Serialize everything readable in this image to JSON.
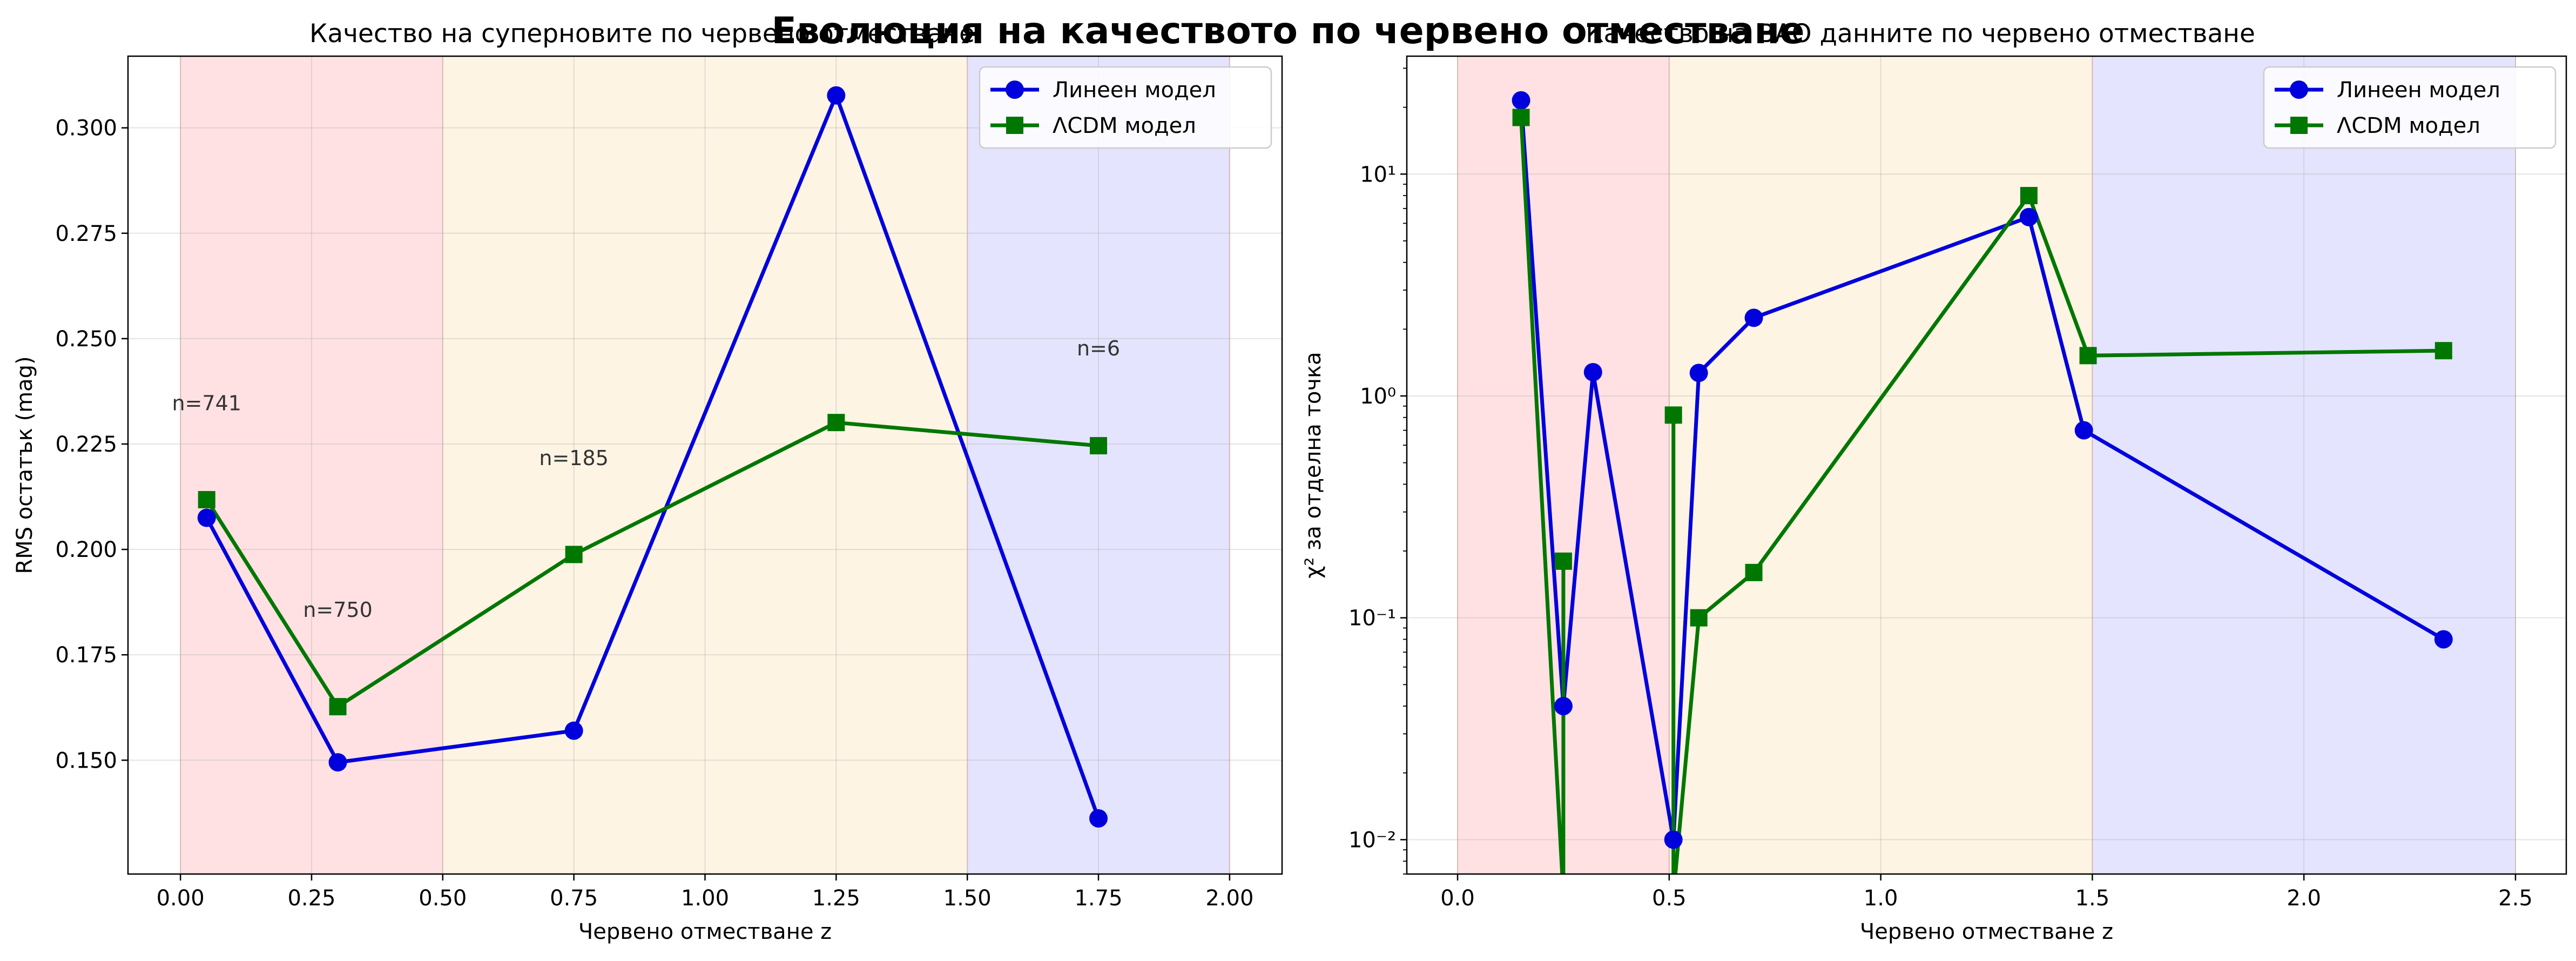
{
  "suptitle": "Еволюция на качеството по червено отместване",
  "chart_data": [
    {
      "type": "line",
      "title": "Качество на суперновите по червено отместване",
      "xlabel": "Червено отместване z",
      "ylabel": "RMS остатък (mag)",
      "xlim": [
        -0.1,
        2.1
      ],
      "ylim": [
        0.123,
        0.317
      ],
      "xticks": [
        "0.00",
        "0.25",
        "0.50",
        "0.75",
        "1.00",
        "1.25",
        "1.50",
        "1.75",
        "2.00"
      ],
      "yticks": [
        "0.150",
        "0.175",
        "0.200",
        "0.225",
        "0.250",
        "0.275",
        "0.300"
      ],
      "yscale": "linear",
      "grid": true,
      "legend": "top-right",
      "bands": [
        {
          "from": 0.0,
          "to": 0.5,
          "color": "#ffe1e3"
        },
        {
          "from": 0.5,
          "to": 1.5,
          "color": "#fdf4e3"
        },
        {
          "from": 1.5,
          "to": 2.0,
          "color": "#e4e4fe"
        }
      ],
      "series": [
        {
          "name": "Линеен модел",
          "color": "#0000dd",
          "marker": "circle",
          "x": [
            0.05,
            0.3,
            0.75,
            1.25,
            1.75
          ],
          "y": [
            0.2075,
            0.1495,
            0.157,
            0.3077,
            0.1362
          ]
        },
        {
          "name": "ΛCDM модел",
          "color": "#007700",
          "marker": "square",
          "x": [
            0.05,
            0.3,
            0.75,
            1.25,
            1.75
          ],
          "y": [
            0.2118,
            0.1627,
            0.1988,
            0.2301,
            0.2246
          ]
        }
      ],
      "annotations": [
        {
          "text": "n=741",
          "x": 0.05,
          "y": 0.233
        },
        {
          "text": "n=750",
          "x": 0.3,
          "y": 0.184
        },
        {
          "text": "n=185",
          "x": 0.75,
          "y": 0.22
        },
        {
          "text": "n=6",
          "x": 1.75,
          "y": 0.246
        }
      ]
    },
    {
      "type": "line",
      "title": "Качество на BAO данните по червено отместване",
      "xlabel": "Червено отместване z",
      "ylabel": "χ² за отделна точка",
      "xlim": [
        -0.12,
        2.62
      ],
      "ylim": [
        0.007,
        34
      ],
      "yscale": "log",
      "xticks": [
        "0.0",
        "0.5",
        "1.0",
        "1.5",
        "2.0",
        "2.5"
      ],
      "yticks": [
        "10⁻²",
        "10⁻¹",
        "10⁰",
        "10¹"
      ],
      "grid": true,
      "legend": "top-right",
      "bands": [
        {
          "from": 0.0,
          "to": 0.5,
          "color": "#ffe1e3"
        },
        {
          "from": 0.5,
          "to": 1.5,
          "color": "#fdf4e3"
        },
        {
          "from": 1.5,
          "to": 2.5,
          "color": "#e4e4fe"
        }
      ],
      "series": [
        {
          "name": "Линеен модел",
          "color": "#0000dd",
          "marker": "circle",
          "x": [
            0.15,
            0.25,
            0.32,
            0.51,
            0.57,
            0.7,
            1.35,
            1.48,
            2.33
          ],
          "y": [
            21.5,
            0.04,
            1.28,
            0.01,
            1.27,
            2.25,
            6.4,
            0.7,
            0.08
          ]
        },
        {
          "name": "ΛCDM модел",
          "color": "#007700",
          "marker": "square",
          "x": [
            0.15,
            0.25,
            0.25,
            0.25,
            0.51,
            0.51,
            0.51,
            0.57,
            0.7,
            1.35,
            1.49,
            2.33
          ],
          "y": [
            18,
            0.0005,
            0.18,
            0.0005,
            0.0005,
            0.82,
            0.0005,
            0.1,
            0.16,
            8.0,
            1.52,
            1.6
          ],
          "marker_indices": [
            0,
            2,
            5,
            7,
            8,
            9,
            10,
            11
          ]
        }
      ]
    }
  ]
}
